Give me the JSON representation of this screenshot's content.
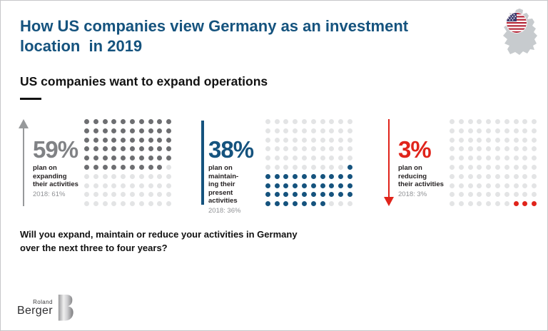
{
  "slide": {
    "title": "How US companies view Germany as an investment\nlocation  in 2019",
    "subtitle": "US companies want to expand operations",
    "question": "Will you expand, maintain or reduce your activities in Germany\nover the next three to four years?",
    "logo": {
      "top": "Roland",
      "bottom": "Berger"
    }
  },
  "icons": {
    "header": "germany-map-with-us-flag-icon",
    "logo": "roland-berger-b-icon"
  },
  "colors": {
    "title_blue": "#15537e",
    "dark_dot": "#6d6e71",
    "light_dot": "#e3e4e5",
    "maintain_blue": "#15537e",
    "reduce_red": "#e0241b",
    "arrow_gray": "#97999b",
    "text_dark": "#231f20",
    "text_gray": "#8f9194",
    "map_gray": "#c7cbce"
  },
  "chart_data": {
    "type": "pictogram",
    "title": "US companies want to expand operations",
    "question": "Will you expand, maintain or reduce your activities in Germany over the next three to four years?",
    "grid": {
      "rows": 10,
      "cols": 10
    },
    "legend_position": "none",
    "series": [
      {
        "key": "expand",
        "value": "59%",
        "value_2019": 59,
        "label": "plan on expanding\ntheir activities",
        "prev_label": "2018: 61%",
        "value_2018": 61,
        "indicator": "arrow-up",
        "indicator_color": "#97999b",
        "accent": "#808285",
        "color": "#6d6e71",
        "pattern": [
          "1111111111",
          "1111111111",
          "1111111111",
          "1111111111",
          "1111111111",
          "1111111110",
          "0000000000",
          "0000000000",
          "0000000000",
          "0000000000"
        ]
      },
      {
        "key": "maintain",
        "value": "38%",
        "value_2019": 38,
        "label": "plan on maintain-\ning their present\nactivities",
        "prev_label": "2018: 36%",
        "value_2018": 36,
        "indicator": "bar",
        "indicator_color": "#15537e",
        "accent": "#15537e",
        "color": "#15537e",
        "pattern": [
          "0000000000",
          "0000000000",
          "0000000000",
          "0000000000",
          "0000000000",
          "0000000001",
          "1111111111",
          "1111111111",
          "1111111111",
          "1111111000"
        ]
      },
      {
        "key": "reduce",
        "value": "3%",
        "value_2019": 3,
        "label": "plan on reducing\ntheir activities",
        "prev_label": "2018: 3%",
        "value_2018": 3,
        "indicator": "arrow-down",
        "indicator_color": "#e0241b",
        "accent": "#e0241b",
        "color": "#e0241b",
        "pattern": [
          "0000000000",
          "0000000000",
          "0000000000",
          "0000000000",
          "0000000000",
          "0000000000",
          "0000000000",
          "0000000000",
          "0000000000",
          "0000000111"
        ]
      }
    ]
  }
}
